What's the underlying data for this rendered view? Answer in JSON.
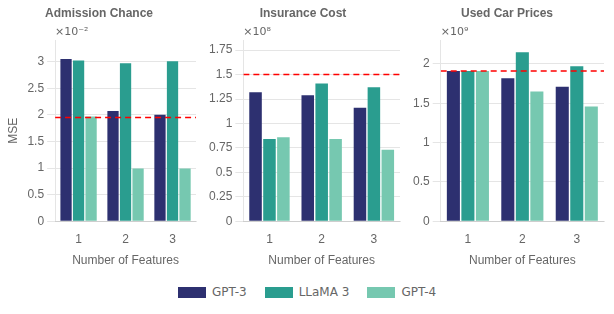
{
  "chart_data": [
    {
      "type": "bar",
      "title": "Admission Chance",
      "xlabel": "Number of Features",
      "ylabel": "MSE",
      "categories": [
        1,
        2,
        3
      ],
      "series": [
        {
          "name": "GPT-3",
          "color": "#2d3070",
          "values": [
            3.05,
            2.07,
            2.0
          ]
        },
        {
          "name": "LLaMA 3",
          "color": "#2a9d8f",
          "values": [
            3.02,
            2.97,
            3.01
          ]
        },
        {
          "name": "GPT-4",
          "color": "#76c8b0",
          "values": [
            1.97,
            0.99,
            0.99
          ]
        }
      ],
      "hline": 1.95,
      "hline_color": "red",
      "annotation": "×10⁻²",
      "ylim": [
        0,
        3.4
      ],
      "yticks": [
        0,
        0.5,
        1,
        1.5,
        2,
        2.5,
        3
      ],
      "grid": "y"
    },
    {
      "type": "bar",
      "title": "Insurance Cost",
      "xlabel": "Number of Features",
      "categories": [
        1,
        2,
        3
      ],
      "series": [
        {
          "name": "GPT-3",
          "color": "#2d3070",
          "values": [
            1.32,
            1.29,
            1.16
          ]
        },
        {
          "name": "LLaMA 3",
          "color": "#2a9d8f",
          "values": [
            0.84,
            1.41,
            1.37
          ]
        },
        {
          "name": "GPT-4",
          "color": "#76c8b0",
          "values": [
            0.86,
            0.84,
            0.73
          ]
        }
      ],
      "hline": 1.5,
      "hline_color": "red",
      "annotation": "×10⁸",
      "ylim": [
        0,
        1.85
      ],
      "yticks": [
        0,
        0.25,
        0.5,
        0.75,
        1,
        1.25,
        1.5,
        1.75
      ],
      "grid": "y",
      "legend": "bottom"
    },
    {
      "type": "bar",
      "title": "Used Car Prices",
      "xlabel": "Number of Features",
      "categories": [
        1,
        2,
        3
      ],
      "series": [
        {
          "name": "GPT-3",
          "color": "#2d3070",
          "values": [
            1.91,
            1.82,
            1.71
          ]
        },
        {
          "name": "LLaMA 3",
          "color": "#2a9d8f",
          "values": [
            1.91,
            2.15,
            1.97
          ]
        },
        {
          "name": "GPT-4",
          "color": "#76c8b0",
          "values": [
            1.91,
            1.65,
            1.46
          ]
        }
      ],
      "hline": 1.91,
      "hline_color": "red",
      "annotation": "×10⁹",
      "ylim": [
        0,
        2.3
      ],
      "yticks": [
        0,
        0.5,
        1,
        1.5,
        2
      ],
      "grid": "y"
    }
  ]
}
